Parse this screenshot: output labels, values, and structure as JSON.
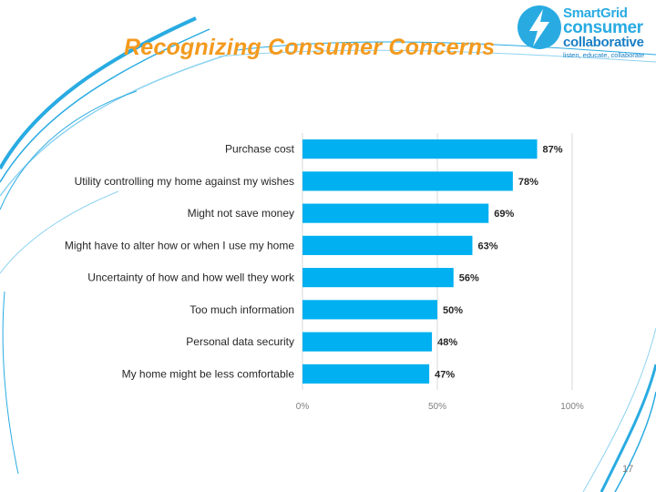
{
  "slide": {
    "title": "Recognizing Consumer Concerns",
    "page_number": "17"
  },
  "logo": {
    "line1": "SmartGrid",
    "line2": "consumer",
    "line3": "collaborative",
    "tagline": "listen, educate, collaborate"
  },
  "colors": {
    "bar": "#00b0f0",
    "title": "#f39a1e",
    "brand": "#29abe2",
    "gridline": "#d9d9d9"
  },
  "chart_data": {
    "type": "bar",
    "orientation": "horizontal",
    "categories": [
      "Purchase cost",
      "Utility controlling my home against my wishes",
      "Might not save money",
      "Might have to alter how or when I use my home",
      "Uncertainty of how and how well they work",
      "Too much information",
      "Personal data security",
      "My home might be less comfortable"
    ],
    "values": [
      87,
      78,
      69,
      63,
      56,
      50,
      48,
      47
    ],
    "data_labels": [
      "87%",
      "78%",
      "69%",
      "63%",
      "56%",
      "50%",
      "48%",
      "47%"
    ],
    "x_ticks": [
      "0%",
      "50%",
      "100%"
    ],
    "xlim": [
      0,
      100
    ],
    "grid": true,
    "legend": "none"
  }
}
